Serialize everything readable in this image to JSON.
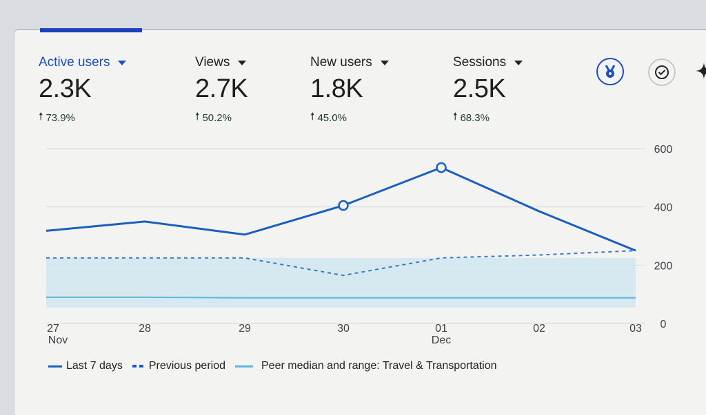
{
  "metrics": [
    {
      "label": "Active users",
      "value": "2.3K",
      "delta": "73.9%",
      "active": true
    },
    {
      "label": "Views",
      "value": "2.7K",
      "delta": "50.2%",
      "active": false
    },
    {
      "label": "New users",
      "value": "1.8K",
      "delta": "45.0%",
      "active": false
    },
    {
      "label": "Sessions",
      "value": "2.5K",
      "delta": "68.3%",
      "active": false
    }
  ],
  "icons": {
    "insights": "medal-icon",
    "check": "check-circle-icon",
    "sparkle": "sparkle-icon"
  },
  "colors": {
    "accent": "#1a4fbf",
    "last7": "#1a5fbf",
    "previous": "#3a78c0",
    "peer": "#5fb6d9",
    "peer_band": "#cfe6ef"
  },
  "chart_data": {
    "type": "line",
    "title": "",
    "xlabel": "",
    "ylabel": "",
    "categories": [
      "27 Nov",
      "28",
      "29",
      "30",
      "01 Dec",
      "02",
      "03"
    ],
    "x_tick_labels": [
      {
        "top": "27",
        "bottom": "Nov"
      },
      {
        "top": "28",
        "bottom": ""
      },
      {
        "top": "29",
        "bottom": ""
      },
      {
        "top": "30",
        "bottom": ""
      },
      {
        "top": "01",
        "bottom": "Dec"
      },
      {
        "top": "02",
        "bottom": ""
      },
      {
        "top": "03",
        "bottom": ""
      }
    ],
    "y_ticks": [
      "0",
      "200",
      "400",
      "600"
    ],
    "ylim": [
      0,
      600
    ],
    "grid": true,
    "legend_position": "bottom",
    "series": [
      {
        "name": "Last 7 days",
        "style": "solid",
        "values": [
          318,
          350,
          305,
          405,
          535,
          385,
          250
        ]
      },
      {
        "name": "Previous period",
        "style": "dashed",
        "values": [
          225,
          225,
          225,
          165,
          225,
          235,
          250
        ]
      },
      {
        "name": "Peer median and range: Travel & Transportation",
        "style": "band",
        "median": [
          90,
          90,
          88,
          88,
          88,
          88,
          88
        ],
        "range_low": [
          55,
          55,
          55,
          55,
          55,
          55,
          55
        ],
        "range_high": [
          225,
          225,
          225,
          225,
          225,
          225,
          225
        ]
      }
    ],
    "highlighted_points": [
      "30",
      "01 Dec"
    ]
  },
  "legend": [
    {
      "label": "Last 7 days"
    },
    {
      "label": "Previous period"
    },
    {
      "label": "Peer median and range: Travel & Transportation"
    }
  ]
}
